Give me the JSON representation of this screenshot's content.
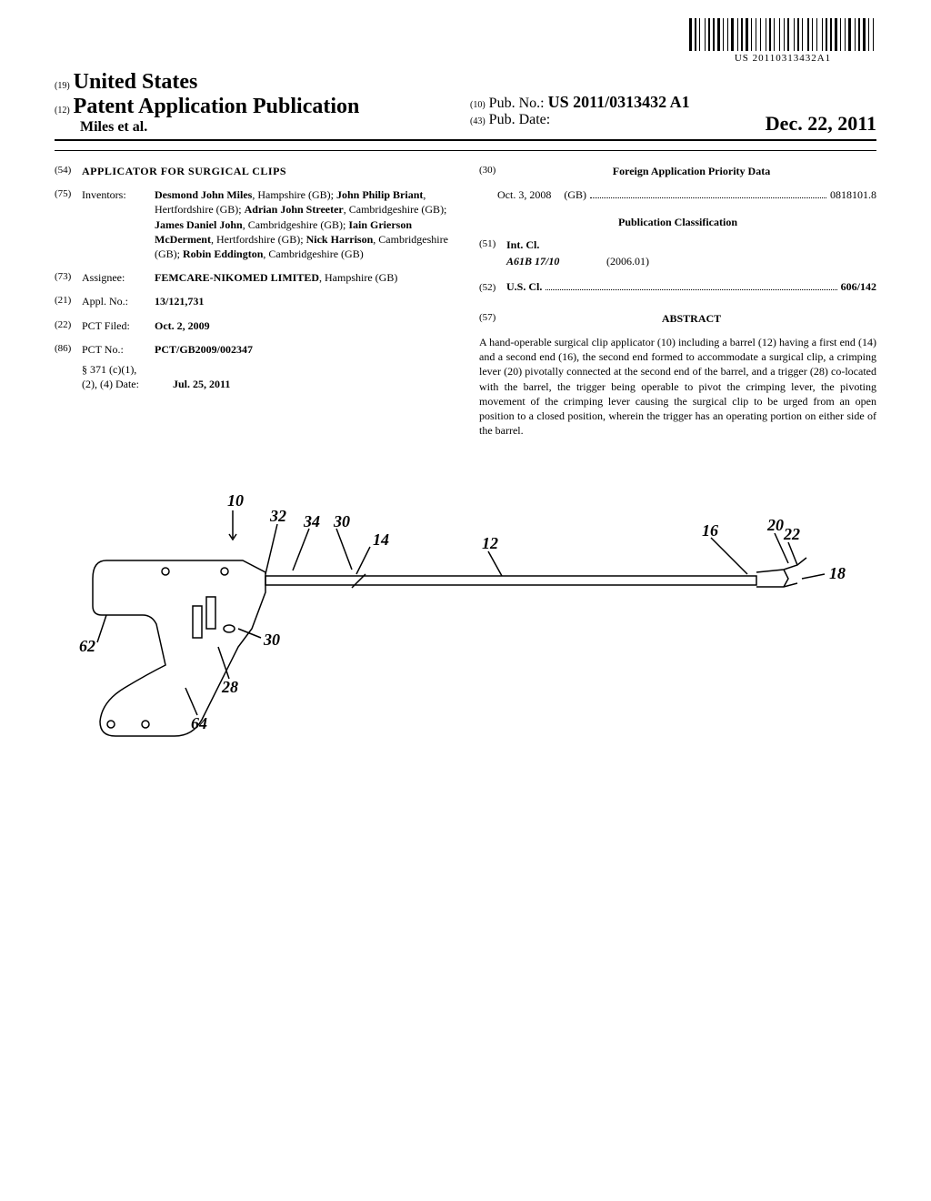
{
  "barcode_number": "US 20110313432A1",
  "header": {
    "code19": "(19)",
    "country": "United States",
    "code12": "(12)",
    "pub_type": "Patent Application Publication",
    "authors": "Miles et al.",
    "code10": "(10)",
    "pub_no_label": "Pub. No.:",
    "pub_no": "US 2011/0313432 A1",
    "code43": "(43)",
    "pub_date_label": "Pub. Date:",
    "pub_date": "Dec. 22, 2011"
  },
  "left": {
    "f54": {
      "code": "(54)",
      "title": "APPLICATOR FOR SURGICAL CLIPS"
    },
    "f75": {
      "code": "(75)",
      "label": "Inventors:",
      "value_html": "<b>Desmond John Miles</b>, Hampshire (GB); <b>John Philip Briant</b>, Hertfordshire (GB); <b>Adrian John Streeter</b>, Cambridgeshire (GB); <b>James Daniel John</b>, Cambridgeshire (GB); <b>Iain Grierson McDerment</b>, Hertfordshire (GB); <b>Nick Harrison</b>, Cambridgeshire (GB); <b>Robin Eddington</b>, Cambridgeshire (GB)"
    },
    "f73": {
      "code": "(73)",
      "label": "Assignee:",
      "value_html": "<b>FEMCARE-NIKOMED LIMITED</b>, Hampshire (GB)"
    },
    "f21": {
      "code": "(21)",
      "label": "Appl. No.:",
      "value": "13/121,731"
    },
    "f22": {
      "code": "(22)",
      "label": "PCT Filed:",
      "value": "Oct. 2, 2009"
    },
    "f86": {
      "code": "(86)",
      "label": "PCT No.:",
      "value": "PCT/GB2009/002347",
      "sub_label": "§ 371 (c)(1),\n(2), (4) Date:",
      "sub_value": "Jul. 25, 2011"
    }
  },
  "right": {
    "f30": {
      "code": "(30)",
      "heading": "Foreign Application Priority Data",
      "date": "Oct. 3, 2008",
      "country": "(GB)",
      "number": "0818101.8"
    },
    "classification_heading": "Publication Classification",
    "f51": {
      "code": "(51)",
      "label": "Int. Cl.",
      "class": "A61B 17/10",
      "edition": "(2006.01)"
    },
    "f52": {
      "code": "(52)",
      "label": "U.S. Cl.",
      "value": "606/142"
    },
    "f57": {
      "code": "(57)",
      "heading": "ABSTRACT"
    },
    "abstract": "A hand-operable surgical clip applicator (10) including a barrel (12) having a first end (14) and a second end (16), the second end formed to accommodate a surgical clip, a crimping lever (20) pivotally connected at the second end of the barrel, and a trigger (28) co-located with the barrel, the trigger being operable to pivot the crimping lever, the pivoting movement of the crimping lever causing the surgical clip to be urged from an open position to a closed position, wherein the trigger has an operating portion on either side of the barrel."
  },
  "figure": {
    "labels": {
      "l10": "10",
      "l32": "32",
      "l34": "34",
      "l30a": "30",
      "l14": "14",
      "l12": "12",
      "l16": "16",
      "l20": "20",
      "l22": "22",
      "l18": "18",
      "l62": "62",
      "l30b": "30",
      "l28": "28",
      "l64": "64"
    }
  },
  "style": {
    "barcode_widths": [
      3,
      1,
      2,
      1,
      1,
      3,
      1,
      1,
      2,
      1,
      2,
      1,
      3,
      1,
      1,
      2,
      1,
      1,
      3,
      2,
      1,
      1,
      2,
      1,
      3,
      1,
      1,
      2,
      1,
      2,
      1,
      3,
      1,
      1,
      2,
      1,
      1,
      3,
      1,
      2,
      1,
      1,
      2,
      3,
      1,
      1,
      2,
      1,
      1,
      3,
      2,
      1,
      1,
      2,
      1,
      3,
      1,
      1,
      2,
      1,
      2,
      1,
      3,
      1,
      1,
      2,
      1,
      1,
      3,
      2,
      1,
      1,
      2,
      1,
      3,
      1,
      1,
      2,
      1,
      2
    ]
  }
}
